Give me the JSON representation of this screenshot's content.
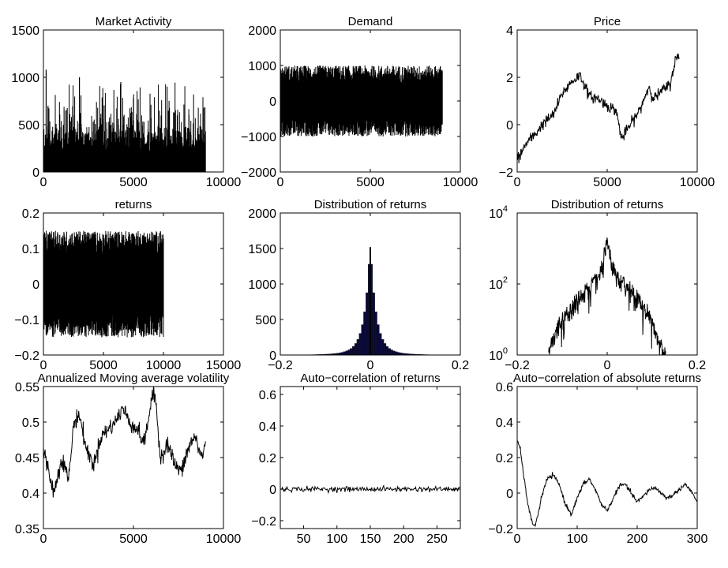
{
  "chart_data": [
    {
      "id": "market-activity",
      "type": "bar",
      "title": "Market Activity",
      "xlim": [
        0,
        10000
      ],
      "ylim": [
        0,
        1500
      ],
      "xticks": [
        0,
        5000,
        10000
      ],
      "yticks": [
        0,
        500,
        1000,
        1500
      ],
      "description_series": {
        "x_range": [
          0,
          9000
        ],
        "typical_range": [
          0,
          500
        ],
        "max_spikes": [
          1080,
          1000,
          950
        ]
      }
    },
    {
      "id": "demand",
      "type": "line",
      "title": "Demand",
      "xlim": [
        0,
        10000
      ],
      "ylim": [
        -2000,
        2000
      ],
      "xticks": [
        0,
        5000,
        10000
      ],
      "yticks": [
        -2000,
        -1000,
        0,
        1000,
        2000
      ],
      "band": {
        "x_range": [
          0,
          9000
        ],
        "min": -1000,
        "max": 1000
      }
    },
    {
      "id": "price",
      "type": "line",
      "title": "Price",
      "xlim": [
        0,
        10000
      ],
      "ylim": [
        -2,
        4
      ],
      "xticks": [
        0,
        5000,
        10000
      ],
      "yticks": [
        -2,
        0,
        2,
        4
      ],
      "x": [
        0,
        500,
        1000,
        1500,
        2000,
        2500,
        3000,
        3500,
        4000,
        4500,
        5000,
        5500,
        5800,
        6200,
        6800,
        7300,
        7600,
        8000,
        8500,
        8800,
        9000
      ],
      "y": [
        -1.5,
        -0.8,
        -0.4,
        0.1,
        0.4,
        1.3,
        1.8,
        2.1,
        1.2,
        1.1,
        0.8,
        0.6,
        -0.6,
        -0.1,
        0.6,
        1.6,
        1.1,
        1.4,
        1.7,
        2.8,
        2.8
      ]
    },
    {
      "id": "returns",
      "type": "line",
      "title": "returns",
      "xlim": [
        0,
        15000
      ],
      "ylim": [
        -0.2,
        0.2
      ],
      "xticks": [
        0,
        5000,
        10000,
        15000
      ],
      "yticks": [
        -0.2,
        -0.1,
        0,
        0.1,
        0.2
      ],
      "band": {
        "x_range": [
          0,
          10000
        ],
        "min": -0.15,
        "max": 0.15
      }
    },
    {
      "id": "distribution-returns",
      "type": "bar",
      "title": "Distribution of  returns",
      "xlim": [
        -0.2,
        0.2
      ],
      "ylim": [
        0,
        2000
      ],
      "xticks": [
        -0.2,
        0,
        0.2
      ],
      "yticks": [
        0,
        500,
        1000,
        1500,
        2000
      ],
      "peak": {
        "x": 0,
        "y": 1520
      }
    },
    {
      "id": "distribution-returns-log",
      "type": "line",
      "title": "Distribution of  returns",
      "xlim": [
        -0.2,
        0.2
      ],
      "ylim": [
        1,
        10000
      ],
      "yscale": "log",
      "xticks": [
        -0.2,
        0,
        0.2
      ],
      "yticks": [
        {
          "base": "10",
          "exp": "0"
        },
        {
          "base": "10",
          "exp": "2"
        },
        {
          "base": "10",
          "exp": "4"
        }
      ],
      "x": [
        -0.13,
        -0.12,
        -0.1,
        -0.08,
        -0.06,
        -0.04,
        -0.02,
        -0.01,
        0,
        0.01,
        0.02,
        0.04,
        0.06,
        0.08,
        0.1,
        0.11,
        0.13
      ],
      "y": [
        1,
        3,
        8,
        20,
        45,
        80,
        150,
        300,
        1300,
        300,
        150,
        90,
        50,
        22,
        8,
        3,
        1
      ]
    },
    {
      "id": "volatility",
      "type": "line",
      "title": "Annualized Moving average volatility",
      "xlim": [
        0,
        10000
      ],
      "ylim": [
        0.35,
        0.55
      ],
      "xticks": [
        0,
        5000,
        10000
      ],
      "yticks": [
        0.35,
        0.4,
        0.45,
        0.5,
        0.55
      ],
      "x": [
        0,
        300,
        600,
        1000,
        1400,
        1700,
        2000,
        2400,
        2800,
        3200,
        3600,
        4000,
        4400,
        4800,
        5200,
        5600,
        6000,
        6200,
        6500,
        6900,
        7300,
        7700,
        8000,
        8400,
        8800,
        9000
      ],
      "y": [
        0.46,
        0.43,
        0.4,
        0.45,
        0.42,
        0.5,
        0.51,
        0.46,
        0.44,
        0.48,
        0.49,
        0.5,
        0.52,
        0.5,
        0.49,
        0.47,
        0.53,
        0.54,
        0.45,
        0.47,
        0.44,
        0.43,
        0.46,
        0.48,
        0.45,
        0.47
      ]
    },
    {
      "id": "acf-returns",
      "type": "line",
      "title": "Auto−correlation of  returns",
      "xlim": [
        15,
        285
      ],
      "ylim": [
        -0.25,
        0.65
      ],
      "xticks": [
        50,
        100,
        150,
        200,
        250
      ],
      "yticks": [
        -0.2,
        0,
        0.2,
        0.4,
        0.6
      ],
      "level": 0.0
    },
    {
      "id": "acf-abs-returns",
      "type": "line",
      "title": "Auto−correlation of  absolute returns",
      "xlim": [
        0,
        300
      ],
      "ylim": [
        -0.2,
        0.6
      ],
      "xticks": [
        0,
        100,
        200,
        300
      ],
      "yticks": [
        -0.2,
        0,
        0.2,
        0.4,
        0.6
      ],
      "x": [
        0,
        5,
        10,
        15,
        20,
        25,
        30,
        35,
        40,
        50,
        60,
        70,
        80,
        90,
        100,
        110,
        120,
        130,
        140,
        150,
        160,
        170,
        180,
        190,
        200,
        210,
        220,
        230,
        240,
        250,
        260,
        270,
        280,
        290,
        300
      ],
      "y": [
        0.3,
        0.25,
        0.12,
        0.0,
        -0.1,
        -0.17,
        -0.18,
        -0.12,
        -0.03,
        0.08,
        0.1,
        0.05,
        -0.06,
        -0.12,
        -0.03,
        0.05,
        0.08,
        0.02,
        -0.06,
        -0.1,
        -0.03,
        0.04,
        0.05,
        0.0,
        -0.05,
        -0.02,
        0.02,
        0.03,
        0.0,
        -0.03,
        -0.01,
        0.02,
        0.05,
        0.01,
        -0.05
      ]
    }
  ]
}
